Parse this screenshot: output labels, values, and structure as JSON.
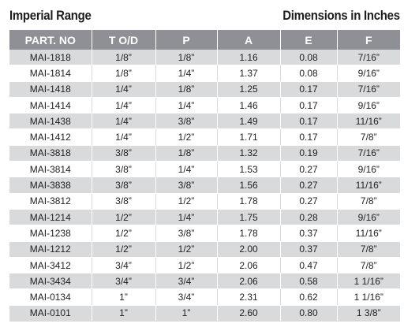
{
  "header": {
    "title_left": "Imperial Range",
    "title_right": "Dimensions in Inches"
  },
  "table": {
    "columns": [
      "PART. NO",
      "T O/D",
      "P",
      "A",
      "E",
      "F"
    ],
    "rows": [
      [
        "MAI-1818",
        "1/8”",
        "1/8”",
        "1.16",
        "0.08",
        "7/16”"
      ],
      [
        "MAI-1814",
        "1/8”",
        "1/4”",
        "1.37",
        "0.08",
        "9/16”"
      ],
      [
        "MAI-1418",
        "1/4”",
        "1/8”",
        "1.25",
        "0.17",
        "7/16”"
      ],
      [
        "MAI-1414",
        "1/4”",
        "1/4”",
        "1.46",
        "0.17",
        "9/16”"
      ],
      [
        "MAI-1438",
        "1/4”",
        "3/8”",
        "1.49",
        "0.17",
        "11/16”"
      ],
      [
        "MAI-1412",
        "1/4”",
        "1/2”",
        "1.71",
        "0.17",
        "7/8”"
      ],
      [
        "MAI-3818",
        "3/8”",
        "1/8”",
        "1.32",
        "0.19",
        "7/16”"
      ],
      [
        "MAI-3814",
        "3/8”",
        "1/4”",
        "1.53",
        "0.27",
        "9/16”"
      ],
      [
        "MAI-3838",
        "3/8”",
        "3/8”",
        "1.56",
        "0.27",
        "11/16”"
      ],
      [
        "MAI-3812",
        "3/8”",
        "1/2”",
        "1.78",
        "0.27",
        "7/8”"
      ],
      [
        "MAI-1214",
        "1/2”",
        "1/4”",
        "1.75",
        "0.28",
        "9/16”"
      ],
      [
        "MAI-1238",
        "1/2”",
        "3/8”",
        "1.78",
        "0.37",
        "11/16”"
      ],
      [
        "MAI-1212",
        "1/2”",
        "1/2”",
        "2.00",
        "0.37",
        "7/8”"
      ],
      [
        "MAI-3412",
        "3/4”",
        "1/2”",
        "2.06",
        "0.47",
        "7/8”"
      ],
      [
        "MAI-3434",
        "3/4”",
        "3/4”",
        "2.06",
        "0.58",
        "1 1/16”"
      ],
      [
        "MAI-0134",
        "1”",
        "3/4”",
        "2.31",
        "0.62",
        "1 1/16”"
      ],
      [
        "MAI-0101",
        "1”",
        "1”",
        "2.60",
        "0.80",
        "1 3/8”"
      ]
    ]
  },
  "colors": {
    "header_bg": "#8e9096",
    "stripe_bg": "#d9dadc",
    "text": "#222222"
  }
}
